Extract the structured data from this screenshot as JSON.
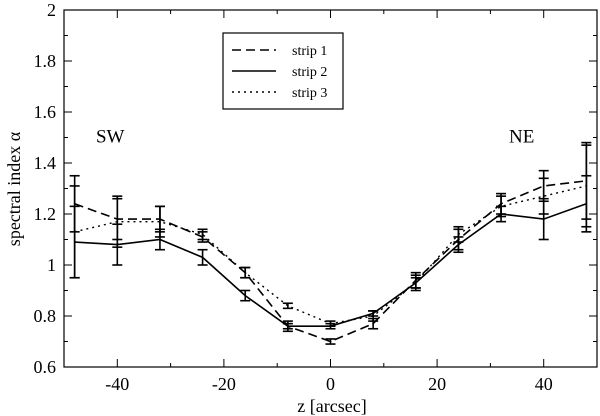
{
  "chart_data": {
    "type": "line",
    "title": "",
    "xlabel": "z [arcsec]",
    "ylabel": "spectral index α",
    "xlim": [
      -50,
      50
    ],
    "ylim": [
      0.6,
      2.0
    ],
    "xticks": [
      -40,
      -20,
      0,
      20,
      40
    ],
    "xtick_labels": [
      "-40",
      "-20",
      "0",
      "20",
      "40"
    ],
    "yticks": [
      0.6,
      0.8,
      1.0,
      1.2,
      1.4,
      1.6,
      1.8,
      2.0
    ],
    "ytick_labels": [
      "0.6",
      "0.8",
      "1",
      "1.2",
      "1.4",
      "1.6",
      "1.8",
      "2"
    ],
    "x": [
      -48,
      -40,
      -32,
      -24,
      -16,
      -8,
      0,
      8,
      16,
      24,
      32,
      40,
      48
    ],
    "series": [
      {
        "name": "strip 1",
        "style": "dashed",
        "values": [
          1.24,
          1.18,
          1.18,
          1.11,
          0.97,
          0.76,
          0.7,
          0.77,
          0.94,
          1.1,
          1.24,
          1.31,
          1.33
        ],
        "errors": [
          0.11,
          0.08,
          0.05,
          0.02,
          0.02,
          0.02,
          0.01,
          0.02,
          0.03,
          0.04,
          0.04,
          0.06,
          0.15
        ]
      },
      {
        "name": "strip 2",
        "style": "solid",
        "values": [
          1.09,
          1.08,
          1.1,
          1.03,
          0.88,
          0.76,
          0.76,
          0.81,
          0.93,
          1.08,
          1.2,
          1.18,
          1.24
        ],
        "errors": [
          0.14,
          0.08,
          0.04,
          0.03,
          0.02,
          0.01,
          0.01,
          0.01,
          0.03,
          0.03,
          0.03,
          0.08,
          0.11
        ]
      },
      {
        "name": "strip 3",
        "style": "dotted",
        "values": [
          1.13,
          1.17,
          1.17,
          1.12,
          0.97,
          0.84,
          0.77,
          0.8,
          0.93,
          1.12,
          1.23,
          1.27,
          1.31
        ],
        "errors": [
          0.18,
          0.1,
          0.06,
          0.02,
          0.02,
          0.01,
          0.01,
          0.02,
          0.02,
          0.03,
          0.04,
          0.07,
          0.16
        ]
      }
    ],
    "annotations": [
      {
        "text": "SW",
        "x": -44,
        "y": 1.48
      },
      {
        "text": "NE",
        "x": 33.5,
        "y": 1.48
      }
    ],
    "legend": {
      "placement": "top-center",
      "entries": [
        "strip 1",
        "strip 2",
        "strip 3"
      ]
    }
  }
}
